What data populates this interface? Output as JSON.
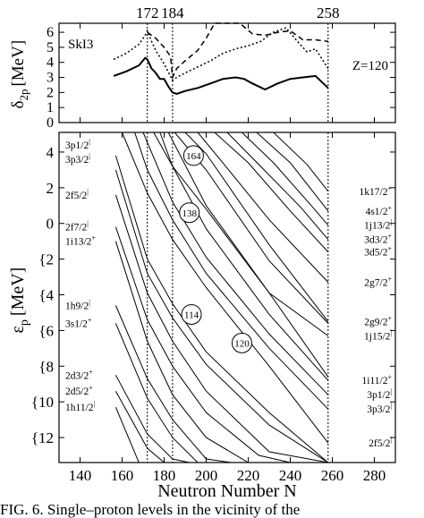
{
  "figure": {
    "caption": "FIG. 6.    Single–proton levels in the vicinity of the"
  },
  "chart_data": [
    {
      "type": "line",
      "panel": "top",
      "annotations": [
        "SkI3",
        "Z=120"
      ],
      "ylabel_main": "δ",
      "ylabel_sub": "2p",
      "ylabel_unit": "[MeV]",
      "xlim": [
        130,
        290
      ],
      "ylim": [
        0,
        6.6
      ],
      "y_ticks": [
        "0",
        "1",
        "2",
        "3",
        "4",
        "5",
        "6"
      ],
      "top_ticks": [
        "172",
        "184",
        "258"
      ],
      "vlines": [
        172,
        184,
        258
      ],
      "series": [
        {
          "style": "solid",
          "x": [
            156,
            162,
            168,
            171,
            172,
            174,
            176,
            178,
            180,
            182,
            184,
            186,
            190,
            196,
            202,
            208,
            214,
            218,
            222,
            228,
            234,
            240,
            246,
            252,
            258
          ],
          "y": [
            3.1,
            3.4,
            3.8,
            4.3,
            4.2,
            3.6,
            3.3,
            2.9,
            2.9,
            2.4,
            2.0,
            1.9,
            2.1,
            2.3,
            2.6,
            2.9,
            3.0,
            2.9,
            2.6,
            2.2,
            2.6,
            2.9,
            3.0,
            3.1,
            2.3
          ]
        },
        {
          "style": "dotted",
          "x": [
            156,
            162,
            168,
            171,
            172,
            174,
            176,
            180,
            184,
            186,
            190,
            196,
            202,
            208,
            214,
            220,
            226,
            232,
            238,
            244,
            248,
            252,
            258
          ],
          "y": [
            4.2,
            4.6,
            5.2,
            5.8,
            6.1,
            5.4,
            4.8,
            3.9,
            2.8,
            3.0,
            3.3,
            3.7,
            4.1,
            4.6,
            4.9,
            5.1,
            5.4,
            6.0,
            6.3,
            5.3,
            4.7,
            4.9,
            3.6
          ]
        },
        {
          "style": "dashed",
          "x": [
            172,
            176,
            180,
            183,
            184,
            186,
            190,
            196,
            200,
            204,
            210,
            216,
            222,
            228,
            234,
            240,
            246,
            252,
            258
          ],
          "y": [
            6.0,
            5.6,
            5.0,
            4.4,
            3.0,
            3.6,
            4.1,
            4.8,
            5.6,
            6.6,
            6.6,
            6.6,
            5.9,
            5.8,
            6.0,
            6.1,
            5.5,
            5.5,
            5.4
          ]
        }
      ]
    },
    {
      "type": "line",
      "panel": "bottom",
      "xlabel": "Neutron Number N",
      "ylabel_main": "ε",
      "ylabel_sub": "p",
      "ylabel_unit": "[MeV]",
      "xlim": [
        130,
        290
      ],
      "ylim": [
        -13.4,
        5.1
      ],
      "x_ticks": [
        "140",
        "160",
        "180",
        "200",
        "220",
        "240",
        "260",
        "280"
      ],
      "y_ticks": [
        {
          "v": 4,
          "t": "4"
        },
        {
          "v": 2,
          "t": "2"
        },
        {
          "v": 0,
          "t": "0"
        },
        {
          "v": -2,
          "t": "{2"
        },
        {
          "v": -4,
          "t": "{4"
        },
        {
          "v": -6,
          "t": "{6"
        },
        {
          "v": -8,
          "t": "{8"
        },
        {
          "v": -10,
          "t": "{10"
        },
        {
          "v": -12,
          "t": "{12"
        }
      ],
      "vlines": [
        172,
        184,
        258
      ],
      "left_labels": [
        {
          "text": "3p1/2",
          "sup": "|",
          "y": 4.4
        },
        {
          "text": "3p3/2",
          "sup": "|",
          "y": 3.6
        },
        {
          "text": "2f5/2",
          "sup": "|",
          "y": 1.6
        },
        {
          "text": "2f7/2",
          "sup": "|",
          "y": -0.2
        },
        {
          "text": "1i13/2",
          "sup": "+",
          "y": -1.0
        },
        {
          "text": "1h9/2",
          "sup": "|",
          "y": -4.6
        },
        {
          "text": "3s1/2",
          "sup": "+",
          "y": -5.6
        },
        {
          "text": "2d3/2",
          "sup": "+",
          "y": -8.5
        },
        {
          "text": "2d5/2",
          "sup": "+",
          "y": -9.4
        },
        {
          "text": "1h11/2",
          "sup": "|",
          "y": -10.3
        }
      ],
      "right_labels": [
        {
          "text": "1k17/2",
          "sup": "+",
          "y": 1.8
        },
        {
          "text": "4s1/2",
          "sup": "+",
          "y": 0.7
        },
        {
          "text": "1j13/2",
          "sup": "|",
          "y": -0.1
        },
        {
          "text": "3d3/2",
          "sup": "+",
          "y": -0.9
        },
        {
          "text": "3d5/2",
          "sup": "+",
          "y": -1.6
        },
        {
          "text": "2g7/2",
          "sup": "+",
          "y": -3.3
        },
        {
          "text": "2g9/2",
          "sup": "+",
          "y": -5.5
        },
        {
          "text": "1j15/2",
          "sup": "|",
          "y": -6.3
        },
        {
          "text": "1i11/2",
          "sup": "+",
          "y": -8.8
        },
        {
          "text": "3p1/2",
          "sup": "|",
          "y": -9.6
        },
        {
          "text": "3p3/2",
          "sup": "|",
          "y": -10.4
        },
        {
          "text": "2f5/2",
          "sup": "|",
          "y": -12.3
        }
      ],
      "gap_labels": [
        {
          "text": "164",
          "x": 194,
          "y": 3.8
        },
        {
          "text": "138",
          "x": 192,
          "y": 0.6
        },
        {
          "text": "114",
          "x": 193,
          "y": -5.1
        },
        {
          "text": "120",
          "x": 217,
          "y": -6.7
        }
      ],
      "levels": [
        {
          "x": [
            157,
            172,
            184,
            200,
            230,
            258
          ],
          "y": [
            3.8,
            -2.0,
            -4.5,
            -7.2,
            -10.6,
            -13.4
          ]
        },
        {
          "x": [
            157,
            172,
            184,
            200,
            230,
            258
          ],
          "y": [
            3.0,
            -2.8,
            -5.3,
            -7.9,
            -11.3,
            -13.4
          ]
        },
        {
          "x": [
            157,
            172,
            184,
            200,
            230,
            258
          ],
          "y": [
            1.6,
            -3.9,
            -6.6,
            -9.4,
            -12.8,
            -13.4
          ]
        },
        {
          "x": [
            157,
            172,
            184,
            200,
            225,
            240
          ],
          "y": [
            -0.2,
            -5.4,
            -8.0,
            -10.6,
            -13.0,
            -13.4
          ]
        },
        {
          "x": [
            157,
            172,
            184,
            200,
            220,
            232
          ],
          "y": [
            -1.0,
            -6.6,
            -9.6,
            -12.0,
            -13.4,
            -13.4
          ]
        },
        {
          "x": [
            157,
            172,
            184,
            200,
            212
          ],
          "y": [
            -4.6,
            -8.7,
            -11.0,
            -13.2,
            -13.4
          ]
        },
        {
          "x": [
            157,
            172,
            184,
            196,
            204
          ],
          "y": [
            -5.6,
            -9.8,
            -12.0,
            -13.4,
            -13.4
          ]
        },
        {
          "x": [
            157,
            172,
            184,
            192
          ],
          "y": [
            -8.5,
            -11.8,
            -13.2,
            -13.4
          ]
        },
        {
          "x": [
            157,
            172,
            180
          ],
          "y": [
            -9.4,
            -12.6,
            -13.4
          ]
        },
        {
          "x": [
            157,
            168
          ],
          "y": [
            -10.3,
            -13.4
          ]
        },
        {
          "x": [
            175,
            184,
            200,
            230,
            258
          ],
          "y": [
            5.1,
            3.2,
            0.8,
            -3.9,
            -8.6
          ]
        },
        {
          "x": [
            185,
            200,
            230,
            258
          ],
          "y": [
            5.1,
            3.0,
            -2.1,
            -5.6
          ]
        },
        {
          "x": [
            190,
            200,
            230,
            258
          ],
          "y": [
            5.1,
            3.9,
            -1.2,
            -5.5
          ]
        },
        {
          "x": [
            196,
            210,
            230,
            258
          ],
          "y": [
            5.1,
            3.1,
            0.2,
            -3.3
          ]
        },
        {
          "x": [
            204,
            220,
            240,
            258
          ],
          "y": [
            5.1,
            3.4,
            0.7,
            -1.6
          ]
        },
        {
          "x": [
            210,
            225,
            245,
            258
          ],
          "y": [
            5.1,
            3.3,
            0.9,
            -0.9
          ]
        },
        {
          "x": [
            217,
            232,
            250,
            258
          ],
          "y": [
            5.1,
            3.4,
            1.0,
            -0.1
          ]
        },
        {
          "x": [
            224,
            240,
            252,
            258
          ],
          "y": [
            5.1,
            3.4,
            1.6,
            0.7
          ]
        },
        {
          "x": [
            232,
            248,
            258
          ],
          "y": [
            5.1,
            3.3,
            1.8
          ]
        },
        {
          "x": [
            160,
            172,
            184,
            200,
            230,
            258
          ],
          "y": [
            5.1,
            1.7,
            -0.9,
            -3.6,
            -8.0,
            -12.3
          ]
        },
        {
          "x": [
            166,
            172,
            184,
            200,
            230,
            258
          ],
          "y": [
            5.1,
            3.0,
            0.2,
            -2.8,
            -7.0,
            -10.4
          ]
        },
        {
          "x": [
            170,
            184,
            200,
            230,
            258
          ],
          "y": [
            5.1,
            1.2,
            -1.9,
            -6.2,
            -9.6
          ]
        },
        {
          "x": [
            178,
            184,
            200,
            230,
            258
          ],
          "y": [
            5.1,
            3.2,
            -0.3,
            -5.1,
            -8.8
          ]
        },
        {
          "x": [
            182,
            200,
            230,
            258
          ],
          "y": [
            5.1,
            1.0,
            -3.9,
            -6.3
          ]
        }
      ]
    }
  ]
}
